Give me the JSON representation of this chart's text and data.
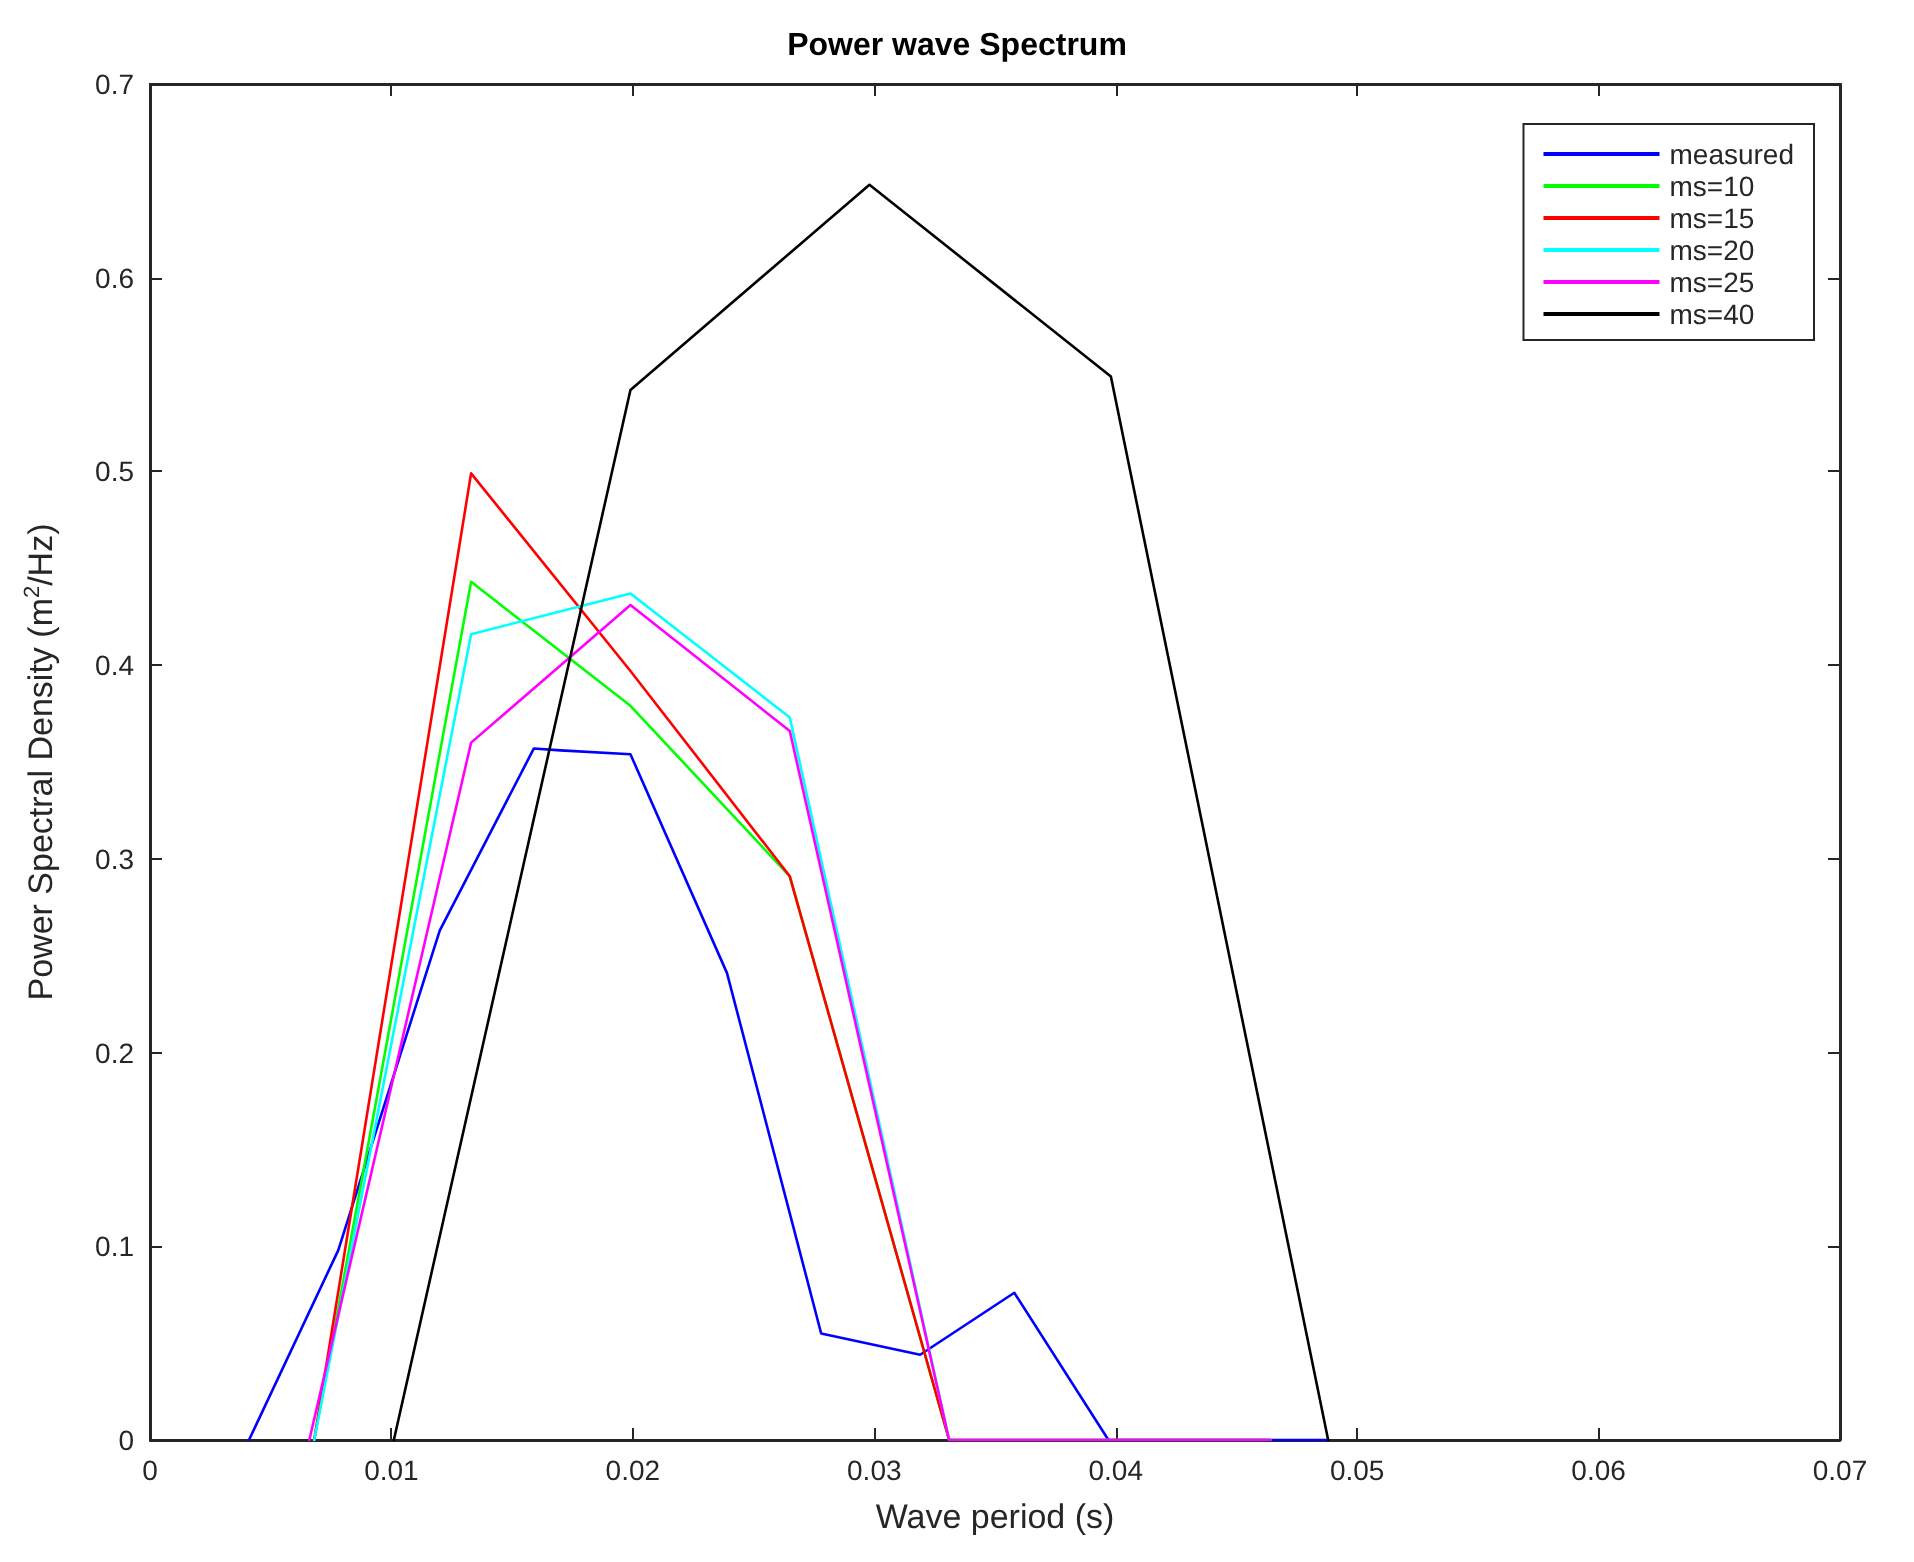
{
  "chart_data": {
    "type": "line",
    "title": "Power wave Spectrum",
    "xlabel": "Wave period (s)",
    "ylabel": "Power Spectral Density (m$^{2}$/Hz)",
    "xlim": [
      0,
      0.07
    ],
    "xticks": [
      0,
      0.01,
      0.02,
      0.03,
      0.04,
      0.05,
      0.06,
      0.07
    ],
    "ylim": [
      0,
      0.7
    ],
    "yticks": [
      0,
      0.1,
      0.2,
      0.3,
      0.4,
      0.5,
      0.6,
      0.7
    ],
    "grid": false,
    "legend": "top right",
    "marker": "none",
    "line_style": "solid",
    "series": [
      {
        "name": "measured",
        "color": "#0000ff",
        "x": [
          0.0041,
          0.0078,
          0.012,
          0.0159,
          0.017,
          0.0199,
          0.0239,
          0.0278,
          0.0319,
          0.0358,
          0.0397,
          0.0488
        ],
        "values": [
          0,
          0.098,
          0.263,
          0.357,
          0.356,
          0.354,
          0.241,
          0.055,
          0.044,
          0.076,
          0,
          0
        ]
      },
      {
        "name": "ms=10",
        "color": "#00ff00",
        "x": [
          0.0068,
          0.0133,
          0.0199,
          0.0265,
          0.0331,
          0.0464
        ],
        "values": [
          0,
          0.443,
          0.379,
          0.291,
          0,
          0
        ]
      },
      {
        "name": "ms=15",
        "color": "#ff0000",
        "x": [
          0.0068,
          0.0133,
          0.0199,
          0.0265,
          0.0331,
          0.0464
        ],
        "values": [
          0,
          0.499,
          0.397,
          0.291,
          0,
          0
        ]
      },
      {
        "name": "ms=20",
        "color": "#00ffff",
        "x": [
          0.0068,
          0.0133,
          0.0199,
          0.0265,
          0.0331,
          0.0464
        ],
        "values": [
          0,
          0.416,
          0.437,
          0.373,
          0,
          0
        ]
      },
      {
        "name": "ms=25",
        "color": "#ff00ff",
        "x": [
          0.0066,
          0.0133,
          0.0199,
          0.0265,
          0.0331,
          0.0464
        ],
        "values": [
          0,
          0.36,
          0.431,
          0.366,
          0,
          0
        ]
      },
      {
        "name": "ms=40",
        "color": "#000000",
        "x": [
          0.0101,
          0.0199,
          0.0298,
          0.0398,
          0.0488
        ],
        "values": [
          0,
          0.542,
          0.648,
          0.549,
          0
        ]
      }
    ]
  }
}
